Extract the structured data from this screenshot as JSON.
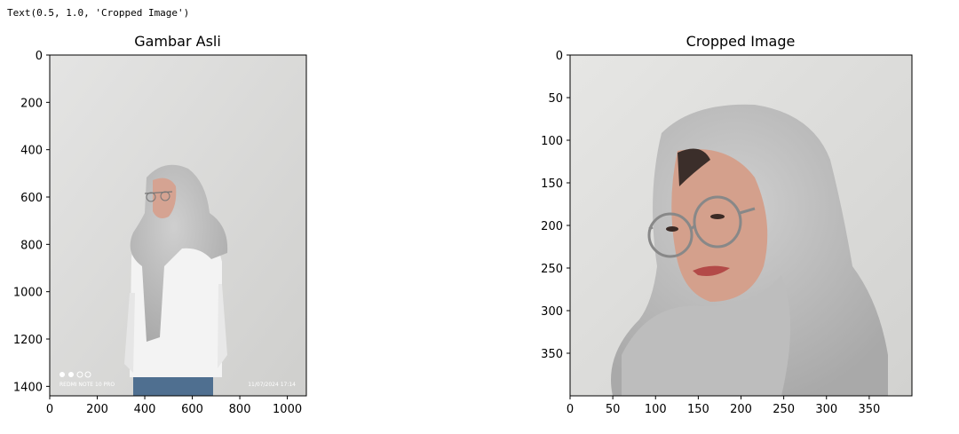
{
  "output_text": "Text(0.5, 1.0, 'Cropped Image')",
  "panels": [
    {
      "title": "Gambar Asli",
      "image_desc_icon": "portrait-photo-full",
      "xticks": [
        "0",
        "200",
        "400",
        "600",
        "800",
        "1000"
      ],
      "yticks": [
        "0",
        "200",
        "400",
        "600",
        "800",
        "1000",
        "1200",
        "1400"
      ],
      "xlim": [
        0,
        1080
      ],
      "ylim": [
        1440,
        0
      ],
      "watermark_left": "REDMI NOTE 10 PRO",
      "watermark_right": "11/07/2024  17:14"
    },
    {
      "title": "Cropped Image",
      "image_desc_icon": "portrait-photo-cropped",
      "xticks": [
        "0",
        "50",
        "100",
        "150",
        "200",
        "250",
        "300",
        "350"
      ],
      "yticks": [
        "0",
        "50",
        "100",
        "150",
        "200",
        "250",
        "300",
        "350"
      ],
      "xlim": [
        0,
        400
      ],
      "ylim": [
        400,
        0
      ]
    }
  ],
  "colors": {
    "wall": "#dcdcda",
    "hijab": "#b9b9b9",
    "shirt": "#f2f2f2",
    "jeans": "#4a6a8c",
    "skin": "#d9a48f"
  }
}
